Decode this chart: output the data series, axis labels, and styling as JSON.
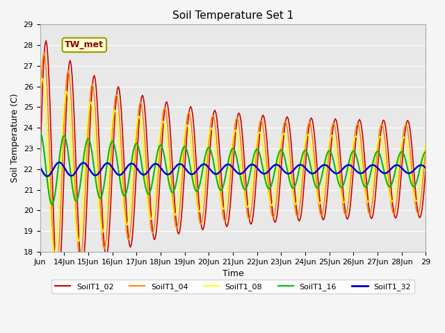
{
  "title": "Soil Temperature Set 1",
  "xlabel": "Time",
  "ylabel": "Soil Temperature (C)",
  "ylim": [
    18.0,
    29.0
  ],
  "yticks": [
    18.0,
    19.0,
    20.0,
    21.0,
    22.0,
    23.0,
    24.0,
    25.0,
    26.0,
    27.0,
    28.0,
    29.0
  ],
  "xtick_labels": [
    "Jun",
    "14Jun",
    "15Jun",
    "16Jun",
    "17Jun",
    "18Jun",
    "19Jun",
    "20Jun",
    "21Jun",
    "22Jun",
    "23Jun",
    "24Jun",
    "25Jun",
    "26Jun",
    "27Jun",
    "28Jun",
    "29"
  ],
  "series_colors": [
    "#cc0000",
    "#ff8800",
    "#ffff00",
    "#00bb00",
    "#0000cc"
  ],
  "series_names": [
    "SoilT1_02",
    "SoilT1_04",
    "SoilT1_08",
    "SoilT1_16",
    "SoilT1_32"
  ],
  "series_linewidths": [
    1.2,
    1.2,
    1.2,
    1.5,
    1.8
  ],
  "annotation_text": "TW_met",
  "fig_facecolor": "#f5f5f5",
  "ax_facecolor": "#e8e8e8",
  "grid_color": "#ffffff",
  "title_fontsize": 11,
  "label_fontsize": 9,
  "tick_fontsize": 8
}
